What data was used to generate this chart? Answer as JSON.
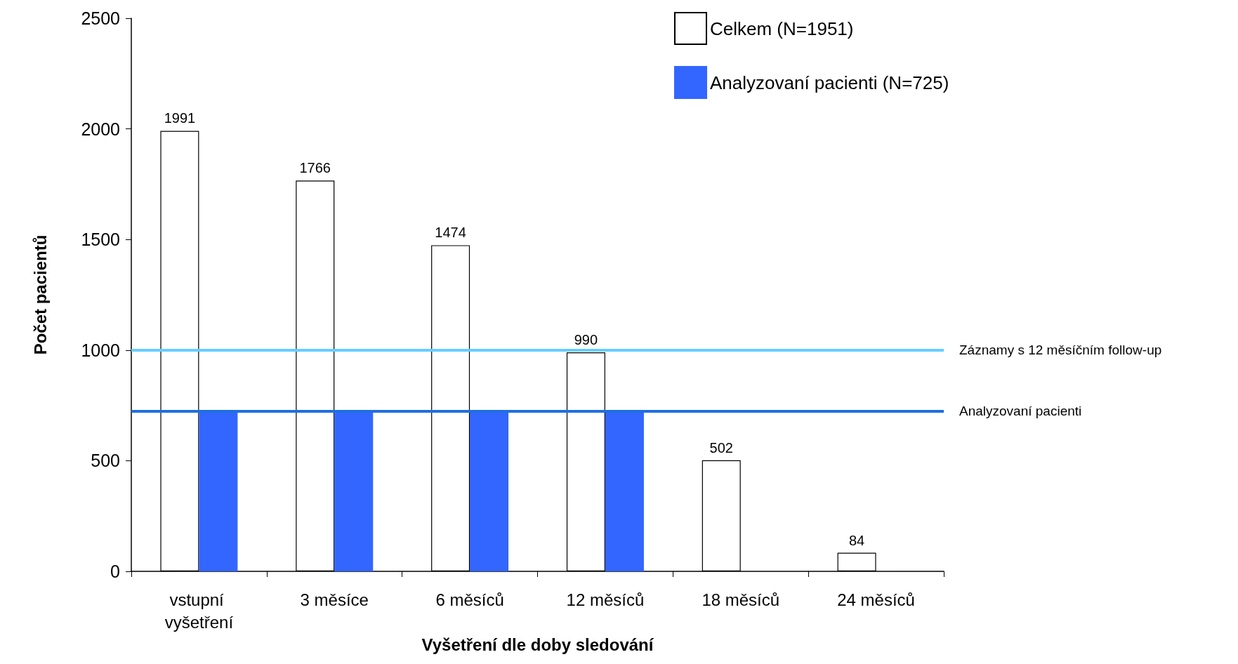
{
  "chart_data": {
    "type": "bar",
    "xlabel": "Vyšetření dle doby sledování",
    "ylabel": "Počet pacientů",
    "categories": [
      "vstupní vyšetření",
      "3 měsíce",
      "6 měsíců",
      "12 měsíců",
      "18 měsíců",
      "24 měsíců"
    ],
    "series": [
      {
        "name": "Celkem (N=1951)",
        "color": "#ffffff",
        "values": [
          1991,
          1766,
          1474,
          990,
          502,
          84
        ],
        "value_labels": [
          "1991",
          "1766",
          "1474",
          "990",
          "502",
          "84"
        ]
      },
      {
        "name": "Analyzovaní pacienti (N=725)",
        "color": "#3366ff",
        "values": [
          725,
          725,
          725,
          725,
          null,
          null
        ]
      }
    ],
    "ylim": [
      0,
      2500
    ],
    "yticks": [
      0,
      500,
      1000,
      1500,
      2000,
      2500
    ],
    "ref_lines": [
      {
        "axis": "y",
        "value": 1000,
        "label": "Záznamy s 12 měsíčním follow-up",
        "color": "#66ccff",
        "line_style": "solid"
      },
      {
        "axis": "y",
        "value": 725,
        "label": "Analyzovaní pacienti",
        "color": "#1f6fe0",
        "line_style": "solid"
      }
    ],
    "grid": false,
    "legend": "top right"
  }
}
